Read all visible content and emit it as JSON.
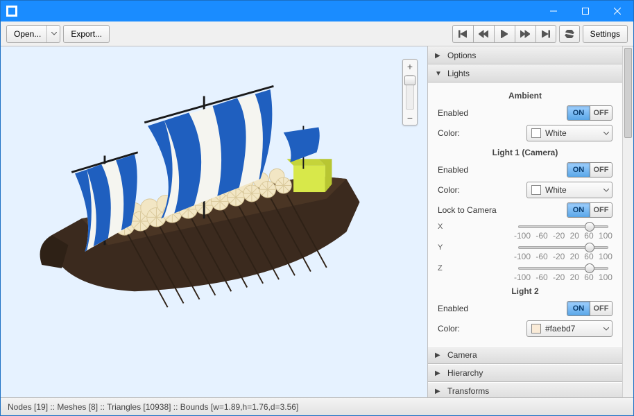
{
  "titlebar": {
    "title": ""
  },
  "toolbar": {
    "open_label": "Open...",
    "export_label": "Export...",
    "settings_label": "Settings"
  },
  "viewport": {
    "background_color": "#e6f2ff",
    "hull_color": "#3b2a1e",
    "deck_color": "#4a3524",
    "sail_stripe_color": "#1f5fbf",
    "sail_base_color": "#f5f5f0",
    "shield_color": "#f2e6c4",
    "shield_shade": "#d9c89a",
    "oar_color": "#2e2116",
    "mast_color": "#1a1a1a",
    "cabin_color": "#d8e84a"
  },
  "zoom": {
    "plus": "+",
    "minus": "−"
  },
  "panel": {
    "sections": {
      "options": "Options",
      "lights": "Lights",
      "camera": "Camera",
      "hierarchy": "Hierarchy",
      "transforms": "Transforms"
    },
    "ambient": {
      "title": "Ambient",
      "enabled_label": "Enabled",
      "enabled": true,
      "color_label": "Color:",
      "color_name": "White",
      "color_hex": "#ffffff"
    },
    "light1": {
      "title": "Light 1 (Camera)",
      "enabled_label": "Enabled",
      "enabled": true,
      "color_label": "Color:",
      "color_name": "White",
      "color_hex": "#ffffff",
      "lock_label": "Lock to Camera",
      "lock": true,
      "axes": {
        "x": {
          "label": "X",
          "value": 60
        },
        "y": {
          "label": "Y",
          "value": 60
        },
        "z": {
          "label": "Z",
          "value": 60
        }
      },
      "tick_labels": [
        "-100",
        "-60",
        "-20",
        "20",
        "60",
        "100"
      ]
    },
    "light2": {
      "title": "Light 2",
      "enabled_label": "Enabled",
      "enabled": true,
      "color_label": "Color:",
      "color_name": "#faebd7",
      "color_hex": "#faebd7"
    },
    "toggle": {
      "on": "ON",
      "off": "OFF"
    }
  },
  "status": {
    "text": "Nodes [19] :: Meshes [8] :: Triangles [10938] :: Bounds [w=1.89,h=1.76,d=3.56]"
  }
}
